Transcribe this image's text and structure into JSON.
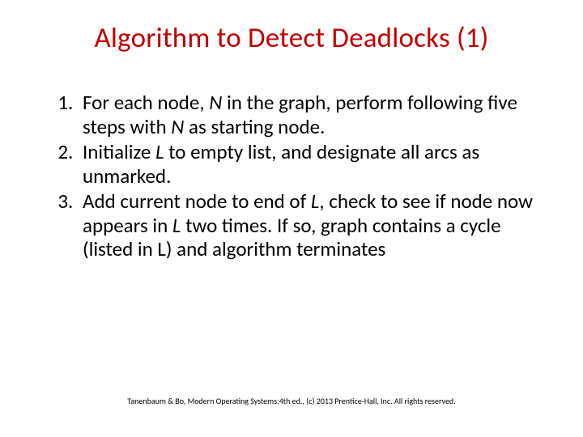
{
  "slide": {
    "title": "Algorithm to Detect Deadlocks (1)",
    "title_color": "#c00000",
    "background_color": "#ffffff",
    "body_text_color": "#000000",
    "title_fontsize": 35,
    "body_fontsize": 25,
    "footer_fontsize": 10,
    "steps": [
      {
        "pre_italic": "For each node, ",
        "italic1": "N",
        "mid1": " in the graph, perform following five steps with ",
        "italic2": "N",
        "post": " as starting node."
      },
      {
        "pre_italic": "Initialize ",
        "italic1": "L",
        "mid1": " to empty list, and designate all arcs as unmarked.",
        "italic2": "",
        "post": ""
      },
      {
        "pre_italic": "Add current node to end of ",
        "italic1": "L",
        "mid1": ", check to see if node now appears in ",
        "italic2": "L",
        "post": " two times. If so, graph contains a cycle (listed in L) and algorithm terminates"
      }
    ],
    "footer": "Tanenbaum & Bo, Modern Operating Systems:4th ed., (c) 2013 Prentice-Hall, Inc. All rights reserved."
  }
}
